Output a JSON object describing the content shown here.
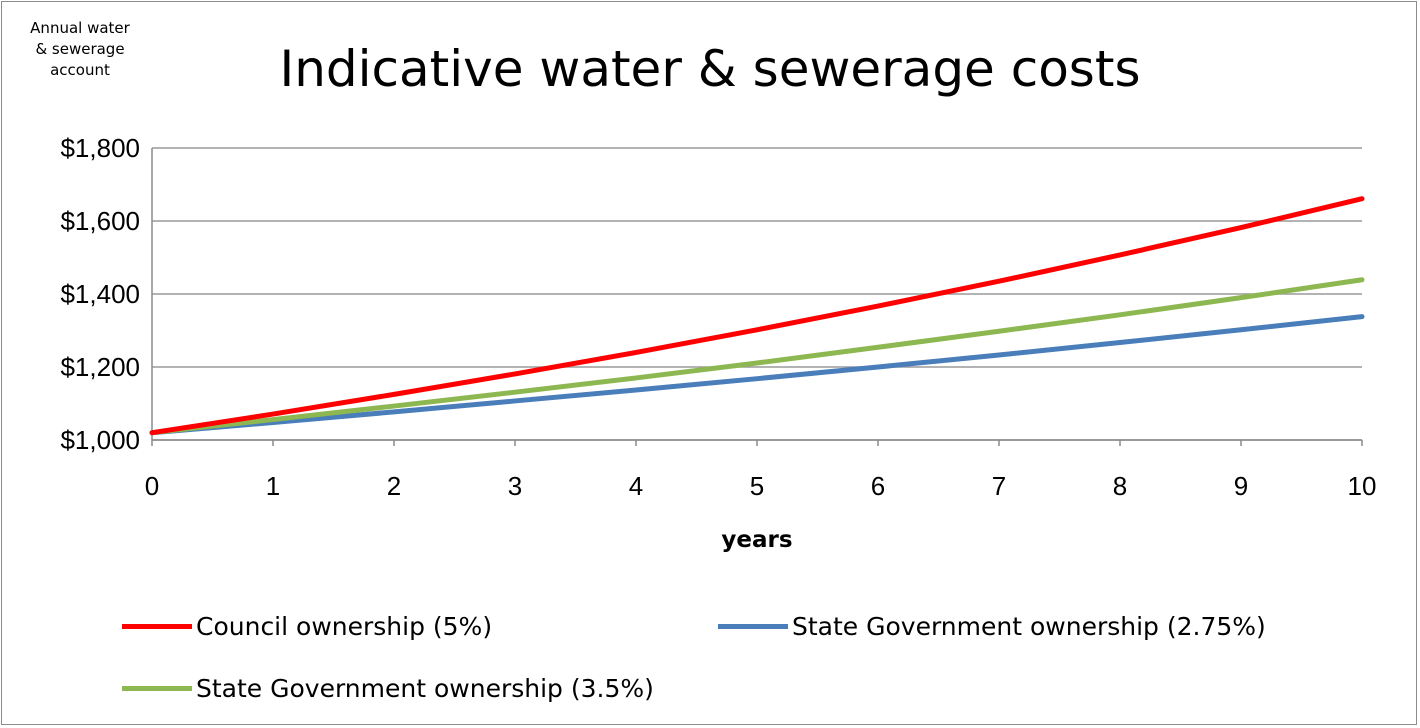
{
  "chart_data": {
    "type": "line",
    "title": "Indicative water & sewerage costs",
    "ylabel_lines": [
      "Annual water",
      "& sewerage",
      "account"
    ],
    "xlabel": "years",
    "x": [
      0,
      1,
      2,
      3,
      4,
      5,
      6,
      7,
      8,
      9,
      10
    ],
    "xlim": [
      0,
      10
    ],
    "ylim": [
      1000,
      1800
    ],
    "yticks": [
      1000,
      1200,
      1400,
      1600,
      1800
    ],
    "ytick_labels": [
      "$1,000",
      "$1,200",
      "$1,400",
      "$1,600",
      "$1,800"
    ],
    "xtick_labels": [
      "0",
      "1",
      "2",
      "3",
      "4",
      "5",
      "6",
      "7",
      "8",
      "9",
      "10"
    ],
    "grid": "horizontal",
    "legend_position": "bottom",
    "series": [
      {
        "name": "Council ownership (5%)",
        "color": "#ff0000",
        "values": [
          1020,
          1071,
          1125,
          1181,
          1240,
          1302,
          1367,
          1435,
          1507,
          1582,
          1661
        ]
      },
      {
        "name": "State Government ownership (2.75%)",
        "color": "#4a7ebb",
        "values": [
          1020,
          1048,
          1077,
          1107,
          1137,
          1168,
          1200,
          1233,
          1267,
          1302,
          1338
        ]
      },
      {
        "name": "State Government ownership (3.5%)",
        "color": "#8db851",
        "values": [
          1020,
          1056,
          1093,
          1131,
          1170,
          1211,
          1254,
          1298,
          1343,
          1390,
          1439
        ]
      }
    ]
  }
}
